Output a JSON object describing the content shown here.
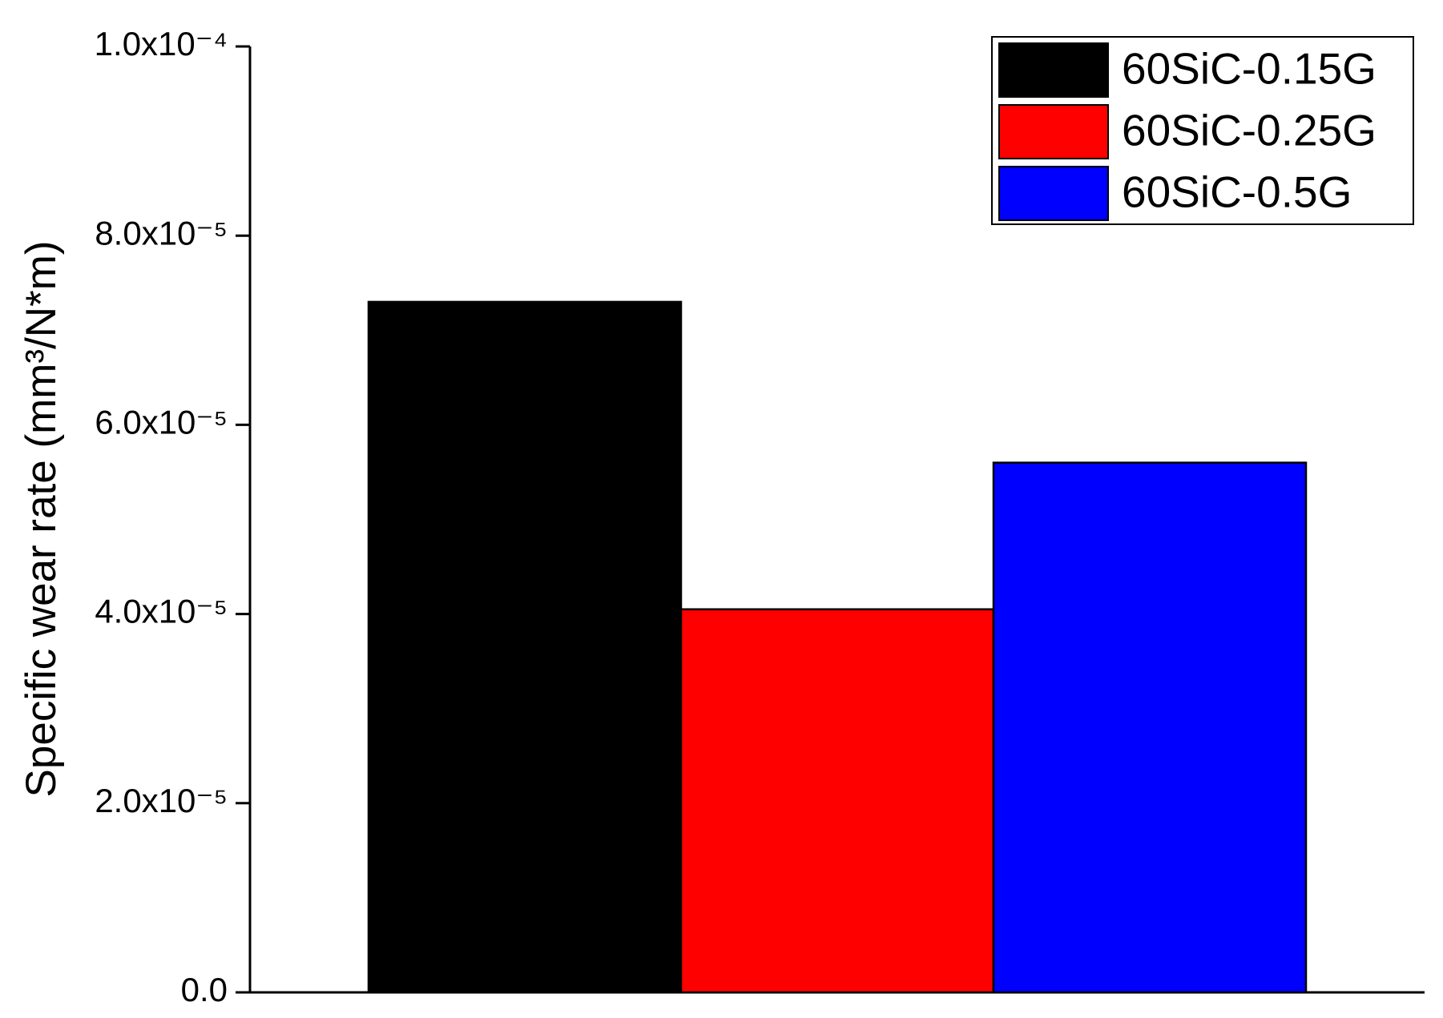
{
  "chart_data": {
    "type": "bar",
    "y_label": "Specific wear rate (mm³/N*m)",
    "series": [
      {
        "name": "60SiC-0.15G",
        "color": "#000000",
        "values": [
          7.3e-05
        ]
      },
      {
        "name": "60SiC-0.25G",
        "color": "#ff0000",
        "values": [
          4.05e-05
        ]
      },
      {
        "name": "60SiC-0.5G",
        "color": "#0000ff",
        "values": [
          5.6e-05
        ]
      }
    ],
    "ylim": [
      0,
      0.0001
    ],
    "yticks": [
      {
        "value": 0,
        "label": "0.0"
      },
      {
        "value": 2e-05,
        "label": "2.0x10⁻⁵"
      },
      {
        "value": 4e-05,
        "label": "4.0x10⁻⁵"
      },
      {
        "value": 6e-05,
        "label": "6.0x10⁻⁵"
      },
      {
        "value": 8e-05,
        "label": "8.0x10⁻⁵"
      },
      {
        "value": 0.0001,
        "label": "1.0x10⁻⁴"
      }
    ],
    "grid": false,
    "legend": "upper right"
  }
}
